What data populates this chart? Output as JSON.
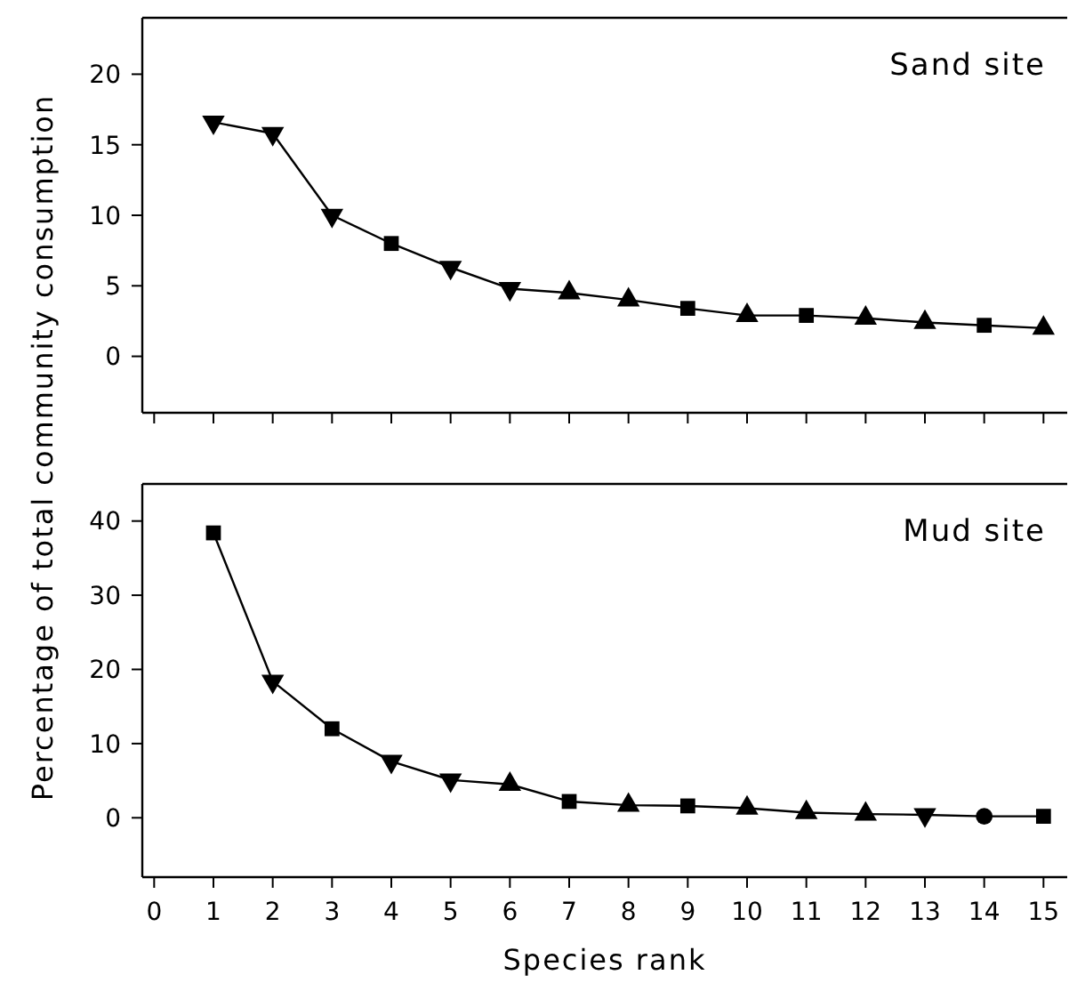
{
  "chart_data": [
    {
      "type": "line",
      "annotations": [
        "Sand site"
      ],
      "ylabel": "Percentage of total community consumption",
      "x": [
        1,
        2,
        3,
        4,
        5,
        6,
        7,
        8,
        9,
        10,
        11,
        12,
        13,
        14,
        15
      ],
      "xlim": [
        -0.2,
        15.4
      ],
      "xticks": [
        0,
        1,
        2,
        3,
        4,
        5,
        6,
        7,
        8,
        9,
        10,
        11,
        12,
        13,
        14,
        15
      ],
      "ylim": [
        -4,
        24
      ],
      "yticks": [
        0,
        5,
        10,
        15,
        20
      ],
      "tick_labels": "y",
      "grid": false,
      "series": [
        {
          "color": "#000000",
          "marker": "none",
          "line_style": "solid",
          "values": [
            16.6,
            15.8,
            10,
            8,
            6.3,
            4.8,
            4.5,
            4,
            3.4,
            2.9,
            2.9,
            2.7,
            2.4,
            2.2,
            2.0
          ]
        },
        {
          "type": "scatter",
          "color": "#000000",
          "marker": "triangle-down",
          "values": [
            16.6,
            15.8,
            10,
            null,
            6.3,
            4.8,
            null,
            null,
            null,
            null,
            null,
            null,
            null,
            null,
            null
          ]
        },
        {
          "type": "scatter",
          "color": "#000000",
          "marker": "square",
          "values": [
            null,
            null,
            null,
            8,
            null,
            null,
            null,
            null,
            3.4,
            null,
            2.9,
            null,
            null,
            2.2,
            null
          ]
        },
        {
          "type": "scatter",
          "color": "#000000",
          "marker": "triangle",
          "values": [
            null,
            null,
            null,
            null,
            null,
            null,
            4.5,
            4,
            null,
            2.9,
            null,
            2.7,
            2.4,
            null,
            2.0
          ]
        }
      ]
    },
    {
      "type": "line",
      "annotations": [
        "Mud site"
      ],
      "xlabel": "Species rank",
      "x": [
        1,
        2,
        3,
        4,
        5,
        6,
        7,
        8,
        9,
        10,
        11,
        12,
        13,
        14,
        15
      ],
      "xlim": [
        -0.2,
        15.4
      ],
      "xticks": [
        0,
        1,
        2,
        3,
        4,
        5,
        6,
        7,
        8,
        9,
        10,
        11,
        12,
        13,
        14,
        15
      ],
      "ylim": [
        -8,
        45
      ],
      "yticks": [
        0,
        10,
        20,
        30,
        40
      ],
      "grid": false,
      "series": [
        {
          "color": "#000000",
          "marker": "none",
          "line_style": "solid",
          "values": [
            38.4,
            18.4,
            12.0,
            7.6,
            5.1,
            4.5,
            2.2,
            1.7,
            1.6,
            1.3,
            0.7,
            0.5,
            0.4,
            0.2,
            0.2
          ]
        },
        {
          "type": "scatter",
          "color": "#000000",
          "marker": "square",
          "values": [
            38.4,
            null,
            12.0,
            null,
            null,
            null,
            2.2,
            null,
            1.6,
            null,
            null,
            null,
            null,
            null,
            0.2
          ]
        },
        {
          "type": "scatter",
          "color": "#000000",
          "marker": "triangle-down",
          "values": [
            null,
            18.4,
            null,
            7.6,
            5.1,
            null,
            null,
            null,
            null,
            null,
            null,
            null,
            0.4,
            null,
            null
          ]
        },
        {
          "type": "scatter",
          "color": "#000000",
          "marker": "triangle",
          "values": [
            null,
            null,
            null,
            null,
            null,
            4.5,
            null,
            1.7,
            null,
            1.3,
            0.7,
            0.5,
            null,
            null,
            null
          ]
        },
        {
          "type": "scatter",
          "color": "#000000",
          "marker": "circle",
          "values": [
            null,
            null,
            null,
            null,
            null,
            null,
            null,
            null,
            null,
            null,
            null,
            null,
            null,
            0.2,
            null
          ]
        }
      ]
    }
  ]
}
